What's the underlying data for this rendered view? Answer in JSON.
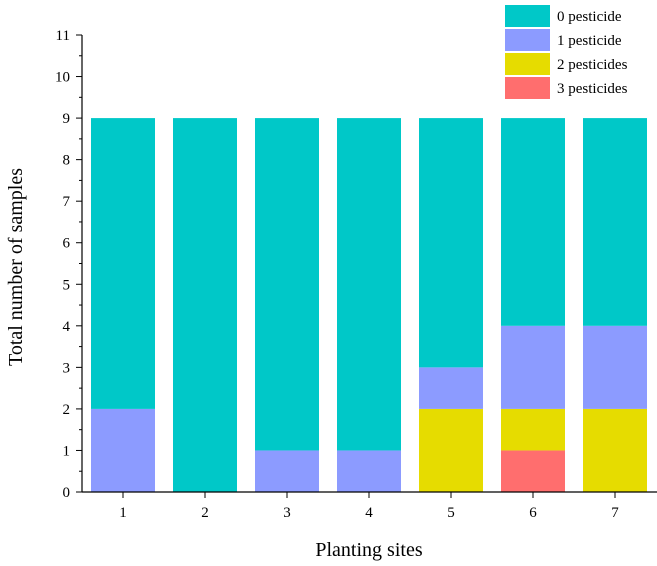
{
  "chart_data": {
    "type": "bar",
    "stacked": true,
    "categories": [
      "1",
      "2",
      "3",
      "4",
      "5",
      "6",
      "7"
    ],
    "series": [
      {
        "name": "0 pesticide",
        "color": "#00C8C8",
        "values": [
          7,
          9,
          8,
          8,
          6,
          5,
          5
        ]
      },
      {
        "name": "1 pesticide",
        "color": "#8C9BFF",
        "values": [
          2,
          0,
          1,
          1,
          1,
          2,
          2
        ]
      },
      {
        "name": "2 pesticides",
        "color": "#E6DC00",
        "values": [
          0,
          0,
          0,
          0,
          2,
          1,
          2
        ]
      },
      {
        "name": "3 pesticides",
        "color": "#FF6E6E",
        "values": [
          0,
          0,
          0,
          0,
          0,
          1,
          0
        ]
      }
    ],
    "stack_order": [
      "3 pesticides",
      "2 pesticides",
      "1 pesticide",
      "0 pesticide"
    ],
    "yticks": [
      0,
      1,
      2,
      3,
      4,
      5,
      6,
      7,
      8,
      9,
      10,
      11
    ],
    "ylim": [
      0,
      11
    ],
    "xlabel": "Planting sites",
    "ylabel": "Total number of samples",
    "legend_position": "top-right",
    "grid": false
  }
}
